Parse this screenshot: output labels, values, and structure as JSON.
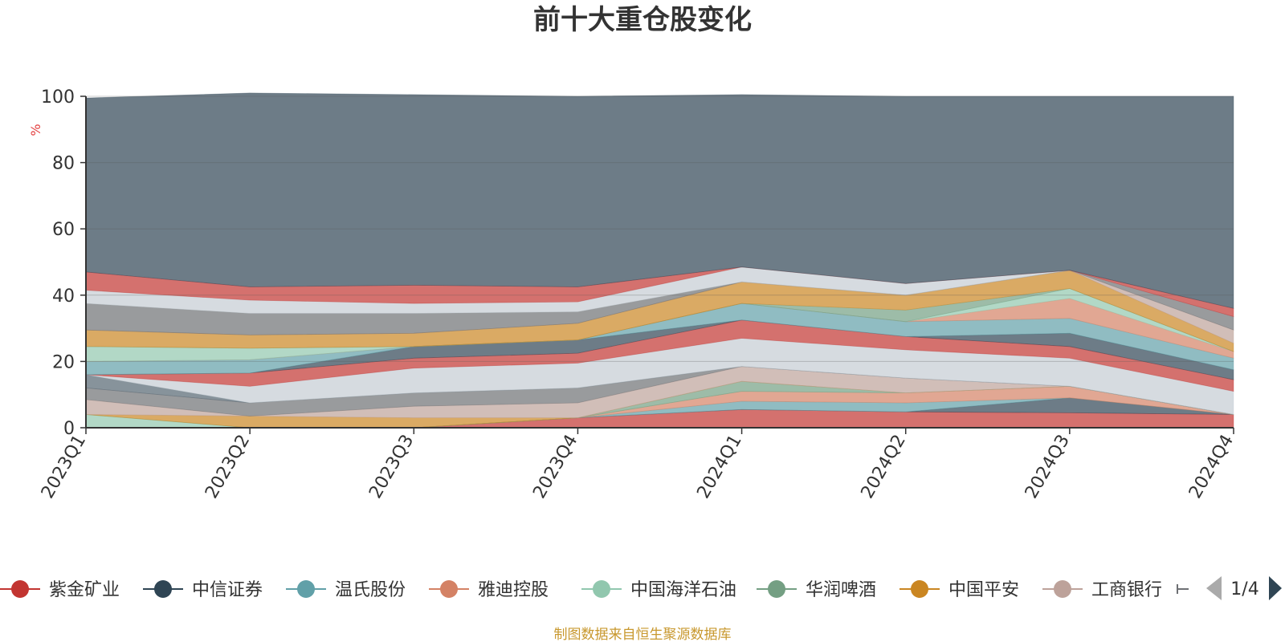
{
  "title": "前十大重仓股变化",
  "footer": "制图数据来自恒生聚源数据库",
  "legend": {
    "items": [
      {
        "name": "紫金矿业",
        "color": "#c23531"
      },
      {
        "name": "中信证券",
        "color": "#2f4554"
      },
      {
        "name": "温氏股份",
        "color": "#61a0a8"
      },
      {
        "name": "雅迪控股",
        "color": "#d48265"
      },
      {
        "name": "中国海洋石油",
        "color": "#91c7ae"
      },
      {
        "name": "华润啤酒",
        "color": "#749f83"
      },
      {
        "name": "中国平安",
        "color": "#ca8622"
      },
      {
        "name": "工商银行",
        "color": "#bda29a"
      }
    ],
    "page": "1/4"
  },
  "chart_data": {
    "type": "area",
    "stacked": true,
    "title": "前十大重仓股变化",
    "ylabel": "%",
    "ylim": [
      0,
      100
    ],
    "yticks": [
      0,
      20,
      40,
      60,
      80,
      100
    ],
    "categories": [
      "2023Q1",
      "2023Q2",
      "2023Q3",
      "2023Q4",
      "2024Q1",
      "2024Q2",
      "2024Q3",
      "2024Q4"
    ],
    "grid": true,
    "bands": [
      {
        "color": "#c23531",
        "values": [
          0,
          0,
          0,
          3.0,
          5.5,
          4.8,
          4.5,
          4.0
        ]
      },
      {
        "color": "#2f4554",
        "values": [
          0,
          0,
          0,
          0,
          0,
          0,
          4.5,
          0
        ]
      },
      {
        "color": "#61a0a8",
        "values": [
          0,
          0,
          0,
          0,
          2.5,
          2.7,
          0,
          0
        ]
      },
      {
        "color": "#d48265",
        "values": [
          0,
          0,
          0,
          0,
          3.0,
          3.0,
          3.5,
          0
        ]
      },
      {
        "color": "#91c7ae",
        "values": [
          4.0,
          0,
          0,
          0,
          0,
          0,
          0,
          0
        ]
      },
      {
        "color": "#749f83",
        "values": [
          0,
          0,
          0,
          0,
          3.0,
          0,
          0,
          0
        ]
      },
      {
        "color": "#ca8622",
        "values": [
          0,
          3.5,
          3.0,
          0,
          0,
          0,
          0,
          0
        ]
      },
      {
        "color": "#bda29a",
        "values": [
          4.5,
          0,
          3.5,
          4.5,
          4.5,
          4.5,
          0,
          0
        ]
      },
      {
        "color": "#6e7074",
        "values": [
          3.5,
          4.0,
          4.0,
          4.5,
          0,
          0,
          0,
          0
        ]
      },
      {
        "color": "#546570",
        "values": [
          4.0,
          0,
          0,
          0,
          0,
          0,
          0,
          0
        ]
      },
      {
        "color": "#c4ccd3",
        "values": [
          0,
          5.0,
          7.5,
          7.5,
          8.5,
          8.5,
          8.5,
          7.0
        ]
      },
      {
        "color": "#c23531",
        "values": [
          0,
          4.0,
          3.0,
          3.0,
          5.5,
          4.0,
          3.5,
          3.5
        ]
      },
      {
        "color": "#2f4554",
        "values": [
          0,
          0,
          3.5,
          4.0,
          0,
          0,
          4.0,
          3.0
        ]
      },
      {
        "color": "#61a0a8",
        "values": [
          4.0,
          4.0,
          0,
          0,
          5.0,
          4.5,
          4.5,
          3.5
        ]
      },
      {
        "color": "#d48265",
        "values": [
          0,
          0,
          0,
          0,
          0,
          0,
          6.0,
          2.0
        ]
      },
      {
        "color": "#91c7ae",
        "values": [
          4.5,
          3.5,
          0,
          0,
          0,
          0,
          3.0,
          0
        ]
      },
      {
        "color": "#749f83",
        "values": [
          0,
          0,
          0,
          0,
          0,
          3.5,
          0,
          0
        ]
      },
      {
        "color": "#ca8622",
        "values": [
          5.0,
          4.0,
          4.0,
          5.0,
          6.5,
          4.5,
          5.5,
          2.5
        ]
      },
      {
        "color": "#bda29a",
        "values": [
          0,
          0,
          0,
          0,
          0,
          0,
          0,
          4.0
        ]
      },
      {
        "color": "#6e7074",
        "values": [
          8.0,
          6.5,
          6.0,
          3.5,
          0,
          0,
          0,
          4.0
        ]
      },
      {
        "color": "#c4ccd3",
        "values": [
          4.0,
          4.0,
          3.0,
          3.0,
          4.5,
          3.5,
          0,
          0
        ]
      },
      {
        "color": "#c23531",
        "values": [
          5.5,
          4.0,
          5.5,
          4.5,
          0,
          0,
          0,
          2.5
        ]
      },
      {
        "color": "#2f4554",
        "values": [
          52.5,
          58.5,
          57.5,
          57.5,
          52.0,
          56.5,
          52.5,
          64.0
        ]
      }
    ]
  }
}
